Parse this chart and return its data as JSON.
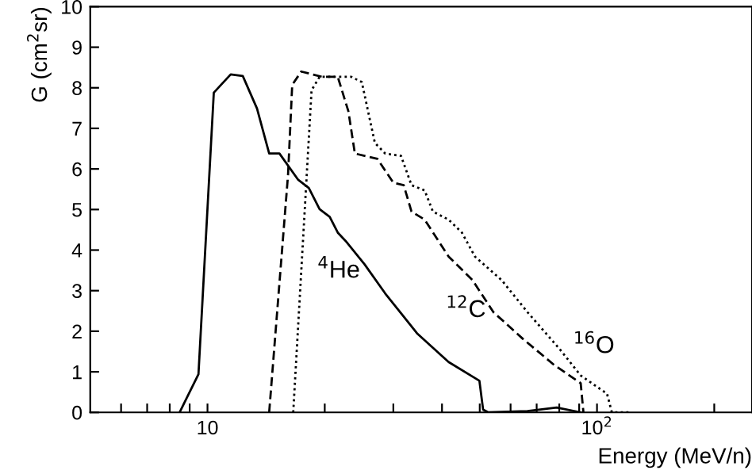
{
  "chart_data": {
    "type": "line",
    "xlabel": "Energy (MeV/n)",
    "ylabel": "G (cm$^{2}$sr)",
    "log": "x",
    "grid": false,
    "legend": false,
    "marker": "none",
    "xlim": [
      5,
      250
    ],
    "ylim": [
      0,
      10
    ],
    "xticks": [
      {
        "value": 6,
        "label": null
      },
      {
        "value": 7,
        "label": null
      },
      {
        "value": 8,
        "label": null
      },
      {
        "value": 9,
        "label": null
      },
      10,
      {
        "value": 20,
        "label": null
      },
      {
        "value": 30,
        "label": null
      },
      {
        "value": 40,
        "label": null
      },
      {
        "value": 50,
        "label": null
      },
      {
        "value": 60,
        "label": null
      },
      {
        "value": 70,
        "label": null
      },
      {
        "value": 80,
        "label": null
      },
      {
        "value": 90,
        "label": null
      },
      {
        "value": 100,
        "label": "10$^{2}$"
      },
      {
        "value": 200,
        "label": null
      }
    ],
    "yticks": [
      0,
      1,
      2,
      3,
      4,
      5,
      6,
      7,
      8,
      9,
      10
    ],
    "series": [
      {
        "name": "$^{4}$He",
        "color": "#000000",
        "line_style": "solid",
        "x": [
          8.48,
          9.48,
          10.38,
          11.47,
          12.32,
          13.4,
          14.4,
          15.3,
          17.1,
          18.2,
          19.4,
          20.6,
          21.6,
          22.6,
          25.3,
          28.6,
          34.5,
          41.6,
          49.9,
          51.0,
          52.6,
          66.3,
          78.8,
          90.8
        ],
        "values": [
          0,
          0.94,
          7.88,
          8.33,
          8.29,
          7.49,
          6.38,
          6.38,
          5.73,
          5.53,
          5.01,
          4.82,
          4.43,
          4.23,
          3.65,
          2.93,
          1.95,
          1.24,
          0.78,
          0.07,
          0,
          0.03,
          0.12,
          0
        ]
      },
      {
        "name": "$^{12}$C",
        "color": "#000000",
        "line_style": "dashed",
        "x": [
          14.4,
          16.1,
          16.5,
          17.4,
          19.7,
          21.6,
          23.0,
          23.9,
          27.3,
          30.0,
          31.9,
          33.4,
          36.1,
          41.6,
          47.9,
          54.2,
          64.4,
          77.6,
          90.8,
          92.3
        ],
        "values": [
          0,
          5.86,
          8.07,
          8.4,
          8.27,
          8.27,
          7.42,
          6.38,
          6.25,
          5.66,
          5.6,
          4.95,
          4.75,
          3.84,
          3.26,
          2.47,
          1.82,
          1.17,
          0.72,
          0
        ]
      },
      {
        "name": "$^{16}$O",
        "color": "#000000",
        "line_style": "dotted",
        "x": [
          16.6,
          18.5,
          19.4,
          23.4,
          24.9,
          26.9,
          28.6,
          31.4,
          33.4,
          36.1,
          37.9,
          41.6,
          45.0,
          48.6,
          56.9,
          66.3,
          80.2,
          90.8,
          106.1,
          109.2,
          121
        ],
        "values": [
          0,
          7.94,
          8.27,
          8.27,
          8.14,
          6.64,
          6.38,
          6.32,
          5.6,
          5.47,
          4.95,
          4.75,
          4.43,
          3.84,
          3.26,
          2.47,
          1.56,
          0.91,
          0.46,
          0,
          0
        ]
      }
    ]
  }
}
